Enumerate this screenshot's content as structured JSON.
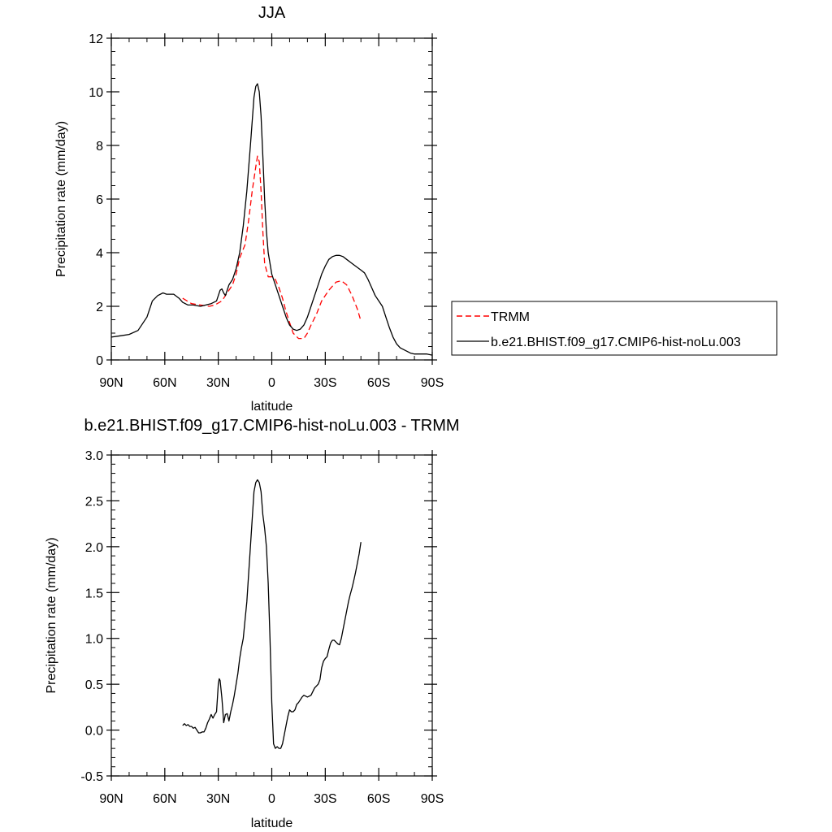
{
  "chart_data": [
    {
      "type": "line",
      "title": "JJA",
      "xlabel": "latitude",
      "ylabel": "Precipitation rate (mm/day)",
      "xlim": [
        90,
        -90
      ],
      "ylim": [
        0,
        12
      ],
      "x_ticks": [
        90,
        60,
        30,
        0,
        -30,
        -60,
        -90
      ],
      "x_tick_labels": [
        "90N",
        "60N",
        "30N",
        "0",
        "30S",
        "60S",
        "90S"
      ],
      "y_ticks": [
        0,
        2,
        4,
        6,
        8,
        10,
        12
      ],
      "y_tick_labels": [
        "0",
        "2",
        "4",
        "6",
        "8",
        "10",
        "12"
      ],
      "legend_position": "outside-right",
      "series": [
        {
          "name": "TRMM",
          "color": "#ff0000",
          "style": "dashed",
          "x": [
            50,
            45,
            40,
            35,
            32,
            28,
            25,
            22,
            20,
            18,
            15,
            13,
            11,
            9,
            8,
            7,
            6,
            5,
            4,
            2,
            0,
            -2,
            -4,
            -6,
            -8,
            -10,
            -12,
            -15,
            -18,
            -20,
            -22,
            -25,
            -28,
            -32,
            -36,
            -39,
            -42,
            -45,
            -48,
            -50
          ],
          "y": [
            2.3,
            2.1,
            2.05,
            2.0,
            2.05,
            2.2,
            2.5,
            2.8,
            3.2,
            3.8,
            4.3,
            5.2,
            6.3,
            7.2,
            7.6,
            7.4,
            6.3,
            4.8,
            3.6,
            3.1,
            3.1,
            3.0,
            2.7,
            2.3,
            1.8,
            1.4,
            1.0,
            0.8,
            0.8,
            1.0,
            1.3,
            1.7,
            2.2,
            2.6,
            2.9,
            2.95,
            2.8,
            2.4,
            1.9,
            1.45
          ]
        },
        {
          "name": "b.e21.BHIST.f09_g17.CMIP6-hist-noLu.003",
          "color": "#000000",
          "style": "solid",
          "x": [
            90,
            85,
            80,
            75,
            70,
            67,
            64,
            61,
            59,
            57,
            55,
            52,
            50,
            47,
            44,
            40,
            37,
            34,
            31,
            29,
            28,
            27,
            26,
            24,
            22,
            20,
            18,
            16,
            14,
            12,
            10,
            9,
            8,
            7,
            6,
            5,
            4,
            3,
            2,
            0,
            -2,
            -4,
            -6,
            -8,
            -10,
            -12,
            -14,
            -16,
            -18,
            -20,
            -22,
            -24,
            -26,
            -28,
            -30,
            -32,
            -34,
            -36,
            -38,
            -40,
            -42,
            -44,
            -46,
            -48,
            -50,
            -52,
            -54,
            -56,
            -58,
            -60,
            -62,
            -64,
            -66,
            -68,
            -70,
            -72,
            -75,
            -78,
            -80,
            -84,
            -87,
            -90
          ],
          "y": [
            0.85,
            0.9,
            0.95,
            1.1,
            1.6,
            2.2,
            2.4,
            2.5,
            2.45,
            2.45,
            2.45,
            2.3,
            2.15,
            2.05,
            2.05,
            2.0,
            2.05,
            2.1,
            2.2,
            2.6,
            2.65,
            2.5,
            2.4,
            2.8,
            3.0,
            3.4,
            4.0,
            5.0,
            6.3,
            8.0,
            9.8,
            10.2,
            10.3,
            10.0,
            9.1,
            7.6,
            6.0,
            4.8,
            4.0,
            3.2,
            2.8,
            2.4,
            2.0,
            1.6,
            1.3,
            1.15,
            1.1,
            1.15,
            1.3,
            1.6,
            2.0,
            2.4,
            2.8,
            3.2,
            3.5,
            3.75,
            3.85,
            3.9,
            3.9,
            3.85,
            3.75,
            3.65,
            3.55,
            3.45,
            3.35,
            3.25,
            3.0,
            2.7,
            2.4,
            2.2,
            2.0,
            1.6,
            1.2,
            0.85,
            0.6,
            0.45,
            0.35,
            0.25,
            0.22,
            0.22,
            0.22,
            0.18
          ]
        }
      ]
    },
    {
      "type": "line",
      "title": "b.e21.BHIST.f09_g17.CMIP6-hist-noLu.003 - TRMM",
      "xlabel": "latitude",
      "ylabel": "Precipitation rate (mm/day)",
      "xlim": [
        90,
        -90
      ],
      "ylim": [
        -0.5,
        3.0
      ],
      "x_ticks": [
        90,
        60,
        30,
        0,
        -30,
        -60,
        -90
      ],
      "x_tick_labels": [
        "90N",
        "60N",
        "30N",
        "0",
        "30S",
        "60S",
        "90S"
      ],
      "y_ticks": [
        -0.5,
        0.0,
        0.5,
        1.0,
        1.5,
        2.0,
        2.5,
        3.0
      ],
      "y_tick_labels": [
        "-0.5",
        "0.0",
        "0.5",
        "1.0",
        "1.5",
        "2.0",
        "2.5",
        "3.0"
      ],
      "series": [
        {
          "color": "#000000",
          "style": "solid",
          "x": [
            50,
            49,
            48,
            47,
            46,
            45,
            44,
            43,
            42,
            41,
            40,
            39,
            38,
            37,
            36,
            35,
            34,
            33,
            32,
            31,
            30.5,
            30,
            29.5,
            29,
            28,
            27.5,
            27,
            26.5,
            26,
            25,
            24,
            23,
            22,
            21,
            20,
            19,
            18,
            17,
            16,
            15,
            14,
            13,
            12,
            11,
            10,
            9,
            8,
            7,
            6,
            5,
            4,
            3,
            2,
            1,
            0,
            -1,
            -2,
            -3,
            -4,
            -5,
            -6,
            -7,
            -8,
            -9,
            -10,
            -11,
            -12,
            -13,
            -14,
            -15,
            -16,
            -17,
            -18,
            -19,
            -20,
            -21,
            -22,
            -23,
            -24,
            -25,
            -26,
            -27,
            -28,
            -29,
            -30,
            -31,
            -32,
            -33,
            -34,
            -35,
            -36,
            -37,
            -38,
            -39,
            -40,
            -41,
            -42,
            -43,
            -44,
            -45,
            -46,
            -47,
            -48,
            -49,
            -50
          ],
          "y": [
            0.05,
            0.07,
            0.05,
            0.06,
            0.04,
            0.04,
            0.02,
            0.03,
            0.0,
            -0.03,
            -0.03,
            -0.02,
            -0.02,
            0.02,
            0.08,
            0.12,
            0.17,
            0.13,
            0.17,
            0.2,
            0.35,
            0.5,
            0.56,
            0.54,
            0.35,
            0.22,
            0.08,
            0.12,
            0.17,
            0.18,
            0.1,
            0.2,
            0.28,
            0.38,
            0.5,
            0.62,
            0.78,
            0.9,
            1.0,
            1.2,
            1.4,
            1.7,
            2.0,
            2.3,
            2.6,
            2.7,
            2.73,
            2.7,
            2.6,
            2.35,
            2.2,
            2.0,
            1.6,
            1.0,
            0.3,
            -0.15,
            -0.2,
            -0.18,
            -0.2,
            -0.2,
            -0.15,
            -0.05,
            0.05,
            0.15,
            0.22,
            0.2,
            0.2,
            0.22,
            0.28,
            0.3,
            0.33,
            0.36,
            0.38,
            0.37,
            0.36,
            0.37,
            0.38,
            0.42,
            0.46,
            0.48,
            0.5,
            0.55,
            0.68,
            0.75,
            0.78,
            0.8,
            0.88,
            0.95,
            0.98,
            0.98,
            0.96,
            0.94,
            0.93,
            1.0,
            1.1,
            1.2,
            1.3,
            1.4,
            1.48,
            1.55,
            1.63,
            1.72,
            1.82,
            1.92,
            2.05
          ]
        }
      ]
    }
  ]
}
